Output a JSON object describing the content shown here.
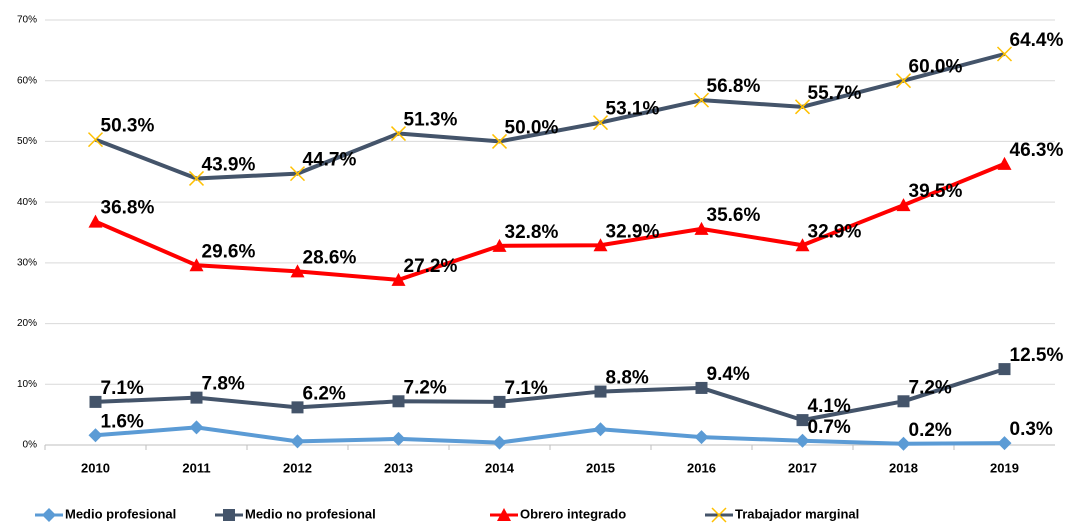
{
  "chart_data": {
    "type": "line",
    "categories": [
      "2010",
      "2011",
      "2012",
      "2013",
      "2014",
      "2015",
      "2016",
      "2017",
      "2018",
      "2019"
    ],
    "ylim": [
      0,
      70
    ],
    "yticks": [
      {
        "value": 0,
        "label": "0%"
      },
      {
        "value": 10,
        "label": "10%"
      },
      {
        "value": 20,
        "label": "20%"
      },
      {
        "value": 30,
        "label": "30%"
      },
      {
        "value": 40,
        "label": "40%"
      },
      {
        "value": 50,
        "label": "50%"
      },
      {
        "value": 60,
        "label": "60%"
      },
      {
        "value": 70,
        "label": "70%"
      }
    ],
    "grid": true,
    "legend": "bottom",
    "series": [
      {
        "name": "Medio profesional",
        "color": "#5b9bd5",
        "marker": "diamond",
        "values": [
          1.6,
          2.9,
          0.6,
          1.0,
          0.4,
          2.6,
          1.3,
          0.7,
          0.2,
          0.3
        ],
        "value_labels": [
          "1.6%",
          null,
          null,
          null,
          null,
          null,
          null,
          "0.7%",
          "0.2%",
          "0.3%"
        ]
      },
      {
        "name": "Medio no profesional",
        "color": "#44546a",
        "marker": "square",
        "values": [
          7.1,
          7.8,
          6.2,
          7.2,
          7.1,
          8.8,
          9.4,
          4.1,
          7.2,
          12.5
        ],
        "value_labels": [
          "7.1%",
          "7.8%",
          "6.2%",
          "7.2%",
          "7.1%",
          "8.8%",
          "9.4%",
          "4.1%",
          "7.2%",
          "12.5%"
        ]
      },
      {
        "name": "Obrero integrado",
        "color": "#ff0000",
        "marker": "triangle",
        "values": [
          36.8,
          29.6,
          28.6,
          27.2,
          32.8,
          32.9,
          35.6,
          32.9,
          39.5,
          46.3
        ],
        "value_labels": [
          "36.8%",
          "29.6%",
          "28.6%",
          "27.2%",
          "32.8%",
          "32.9%",
          "35.6%",
          "32.9%",
          "39.5%",
          "46.3%"
        ]
      },
      {
        "name": "Trabajador marginal",
        "color": "#44546a",
        "marker": "x",
        "marker_color": "#ffc000",
        "values": [
          50.3,
          43.9,
          44.7,
          51.3,
          50.0,
          53.1,
          56.8,
          55.7,
          60.0,
          64.4
        ],
        "value_labels": [
          "50.3%",
          "43.9%",
          "44.7%",
          "51.3%",
          "50.0%",
          "53.1%",
          "56.8%",
          "55.7%",
          "60.0%",
          "64.4%"
        ]
      }
    ]
  }
}
